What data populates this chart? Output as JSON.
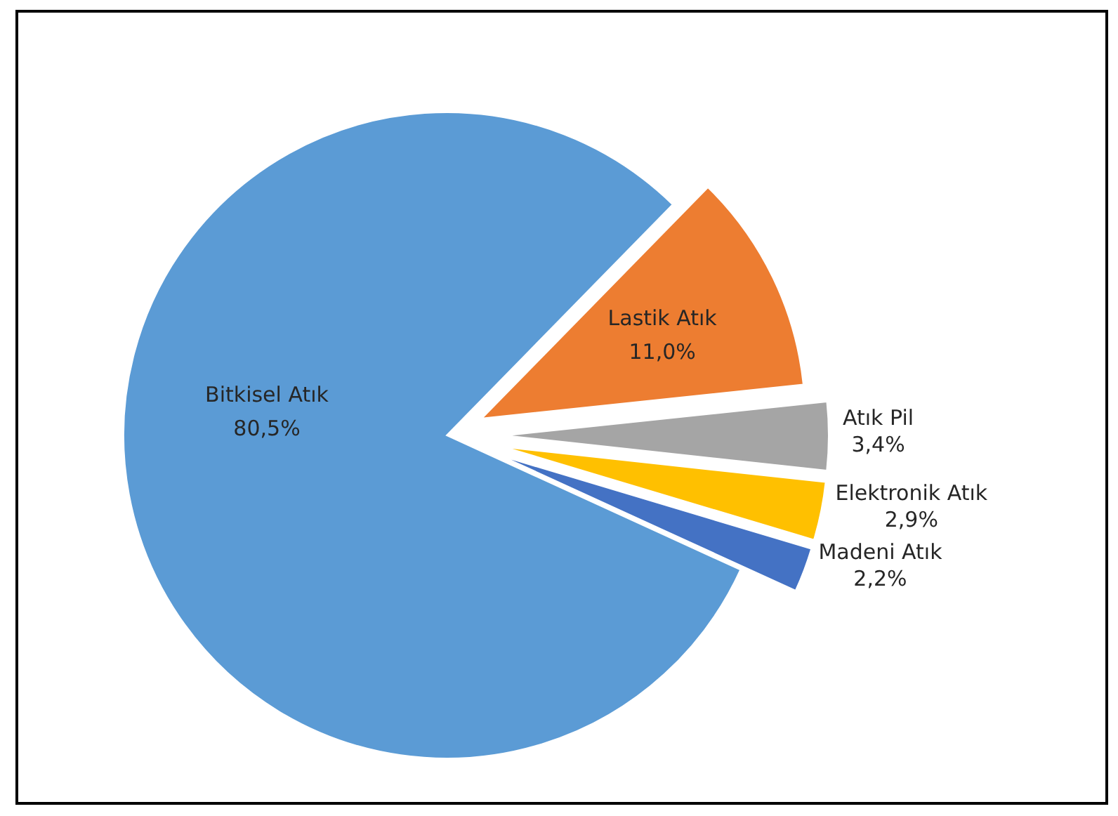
{
  "chart_data": {
    "type": "pie",
    "categories": [
      "Bitkisel Atık",
      "Lastik Atık",
      "Atık Pil",
      "Elektronik Atık",
      "Madeni Atık"
    ],
    "values": [
      80.5,
      11.0,
      3.4,
      2.9,
      2.2
    ],
    "colors": [
      "#5b9bd5",
      "#ed7d31",
      "#a5a5a5",
      "#ffc000",
      "#4472c4"
    ],
    "value_labels": [
      "80,5%",
      "11,0%",
      "3,4%",
      "2,9%",
      "2,2%"
    ],
    "legend": false
  }
}
